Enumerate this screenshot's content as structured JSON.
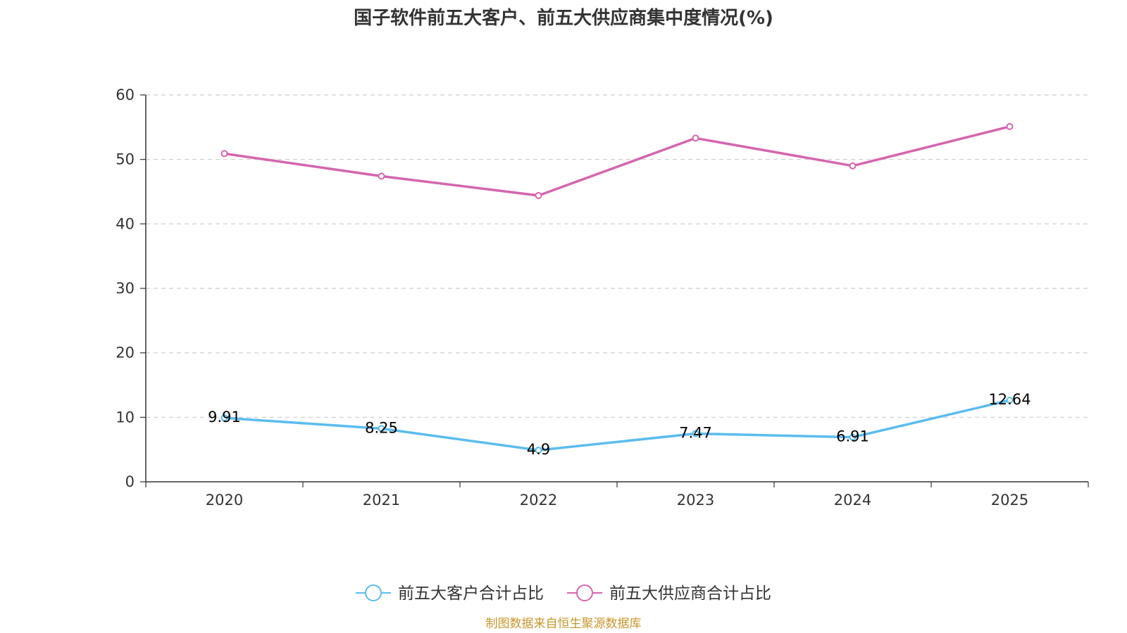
{
  "chart_data": {
    "type": "line",
    "title": "国子软件前五大客户、前五大供应商集中度情况(%)",
    "xlabel": "",
    "ylabel": "",
    "categories": [
      "2020",
      "2021",
      "2022",
      "2023",
      "2024",
      "2025"
    ],
    "ylim": [
      0,
      60
    ],
    "yticks": [
      0,
      10,
      20,
      30,
      40,
      50,
      60
    ],
    "grid": true,
    "legend_position": "bottom",
    "series": [
      {
        "name": "前五大客户合计占比",
        "color": "#5bbcee",
        "values": [
          9.91,
          8.25,
          4.9,
          7.47,
          6.91,
          12.64
        ],
        "labels": [
          "9.91",
          "8.25",
          "4.9",
          "7.47",
          "6.91",
          "12.64"
        ]
      },
      {
        "name": "前五大供应商合计占比",
        "color": "#d466ae",
        "values": [
          50.9,
          47.4,
          44.4,
          53.3,
          49.0,
          55.1
        ]
      }
    ]
  },
  "source": {
    "text": "制图数据来自恒生聚源数据库",
    "color": "#c8962e"
  }
}
